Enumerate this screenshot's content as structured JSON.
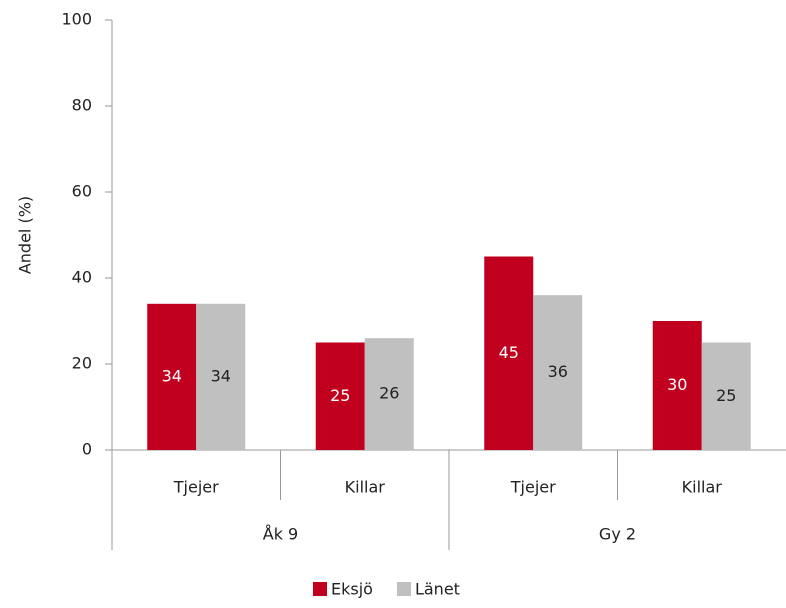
{
  "chart_data": {
    "type": "bar",
    "y_label": "Andel (%)",
    "categories": [
      "Tjejer",
      "Killar",
      "Tjejer",
      "Killar"
    ],
    "groups": [
      "Åk 9",
      "Gy 2"
    ],
    "series": [
      {
        "name": "Eksjö",
        "color": "#c0001e",
        "label_color": "#ffffff",
        "values": [
          34,
          25,
          45,
          30
        ]
      },
      {
        "name": "Länet",
        "color": "#c0c0c0",
        "label_color": "#222222",
        "values": [
          34,
          26,
          36,
          25
        ]
      }
    ],
    "ylim": [
      0,
      100
    ],
    "yticks": [
      0,
      20,
      40,
      60,
      80,
      100
    ],
    "legend": "bottom"
  }
}
